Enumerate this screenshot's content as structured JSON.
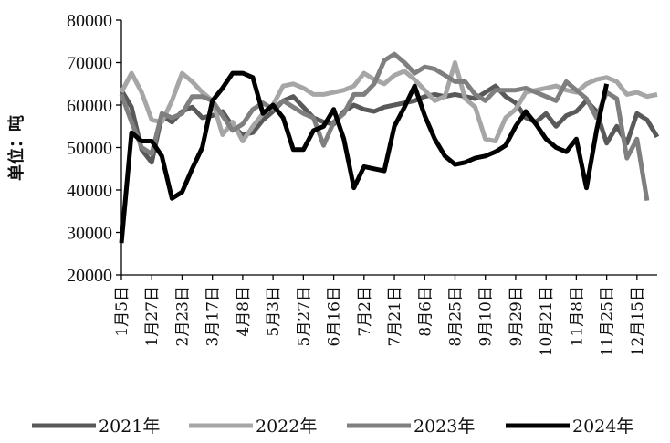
{
  "chart_data": {
    "type": "line",
    "ylabel": "单位：吨",
    "ylim": [
      20000,
      80000
    ],
    "yticks": [
      "80000",
      "70000",
      "60000",
      "50000",
      "40000",
      "30000",
      "20000"
    ],
    "grid": false,
    "legend_position": "bottom",
    "x_ticks": [
      {
        "i": 0,
        "label": "1月5日"
      },
      {
        "i": 3,
        "label": "1月27日"
      },
      {
        "i": 6,
        "label": "2月23日"
      },
      {
        "i": 9,
        "label": "3月17日"
      },
      {
        "i": 12,
        "label": "4月8日"
      },
      {
        "i": 15,
        "label": "5月3日"
      },
      {
        "i": 18,
        "label": "5月27日"
      },
      {
        "i": 21,
        "label": "6月16日"
      },
      {
        "i": 24,
        "label": "7月2日"
      },
      {
        "i": 27,
        "label": "7月21日"
      },
      {
        "i": 30,
        "label": "8月6日"
      },
      {
        "i": 33,
        "label": "8月25日"
      },
      {
        "i": 36,
        "label": "9月10日"
      },
      {
        "i": 39,
        "label": "9月29日"
      },
      {
        "i": 42,
        "label": "10月21日"
      },
      {
        "i": 45,
        "label": "11月8日"
      },
      {
        "i": 48,
        "label": "11月25日"
      },
      {
        "i": 51,
        "label": "12月15日"
      }
    ],
    "series": [
      {
        "name": "2021年",
        "color": "#595959",
        "width": 5,
        "values": [
          63500,
          59500,
          49500,
          46500,
          57500,
          56000,
          58500,
          59500,
          57000,
          57500,
          58500,
          55000,
          53000,
          53500,
          56500,
          58500,
          61000,
          62000,
          59500,
          57000,
          56000,
          55500,
          58500,
          60000,
          59000,
          58500,
          59500,
          60000,
          60500,
          61000,
          62000,
          62500,
          62000,
          62500,
          62000,
          61500,
          63000,
          64500,
          62000,
          60500,
          57000,
          56000,
          58000,
          55000,
          57500,
          58500,
          61000,
          58500,
          51000,
          55000,
          51000,
          58000,
          56500,
          52500
        ]
      },
      {
        "name": "2022年",
        "color": "#a6a6a6",
        "width": 5,
        "values": [
          63000,
          67500,
          63000,
          56500,
          56000,
          61000,
          67500,
          65500,
          63000,
          61000,
          53000,
          56000,
          51500,
          55000,
          58000,
          60000,
          64500,
          65000,
          64000,
          62500,
          62500,
          63000,
          63500,
          64500,
          67500,
          66000,
          65000,
          67000,
          68000,
          66000,
          63500,
          61000,
          62000,
          70000,
          61500,
          59500,
          52000,
          51500,
          57000,
          59000,
          63000,
          63500,
          64000,
          64500,
          63500,
          63000,
          65000,
          66000,
          66500,
          65500,
          62500,
          63000,
          62000,
          62500
        ]
      },
      {
        "name": "2023年",
        "color": "#7f7f7f",
        "width": 5,
        "values": [
          62500,
          56000,
          50000,
          48500,
          58000,
          57000,
          58000,
          62000,
          62000,
          61000,
          57500,
          54000,
          55500,
          59000,
          60500,
          59000,
          61000,
          59500,
          58000,
          57000,
          50500,
          56000,
          58000,
          62500,
          62500,
          65000,
          70500,
          72000,
          70000,
          67500,
          69000,
          68500,
          67000,
          65500,
          65500,
          62500,
          61000,
          63500,
          63500,
          63500,
          64000,
          63000,
          62000,
          61000,
          65500,
          63500,
          61500,
          57000,
          63000,
          61500,
          47500,
          52000,
          37500,
          null
        ]
      },
      {
        "name": "2024年",
        "color": "#000000",
        "width": 5,
        "values": [
          27500,
          53500,
          51500,
          51500,
          48000,
          38000,
          39500,
          45000,
          50000,
          61000,
          64000,
          67500,
          67500,
          66500,
          58000,
          60000,
          57000,
          49500,
          49500,
          54000,
          55000,
          59000,
          52000,
          40500,
          45500,
          45000,
          44500,
          55000,
          59500,
          64500,
          57500,
          52000,
          48000,
          46000,
          46500,
          47500,
          48000,
          49000,
          50500,
          55000,
          58500,
          55500,
          52000,
          50000,
          49000,
          52000,
          40500,
          54000,
          65000,
          null,
          null,
          null,
          null,
          null
        ]
      }
    ]
  }
}
